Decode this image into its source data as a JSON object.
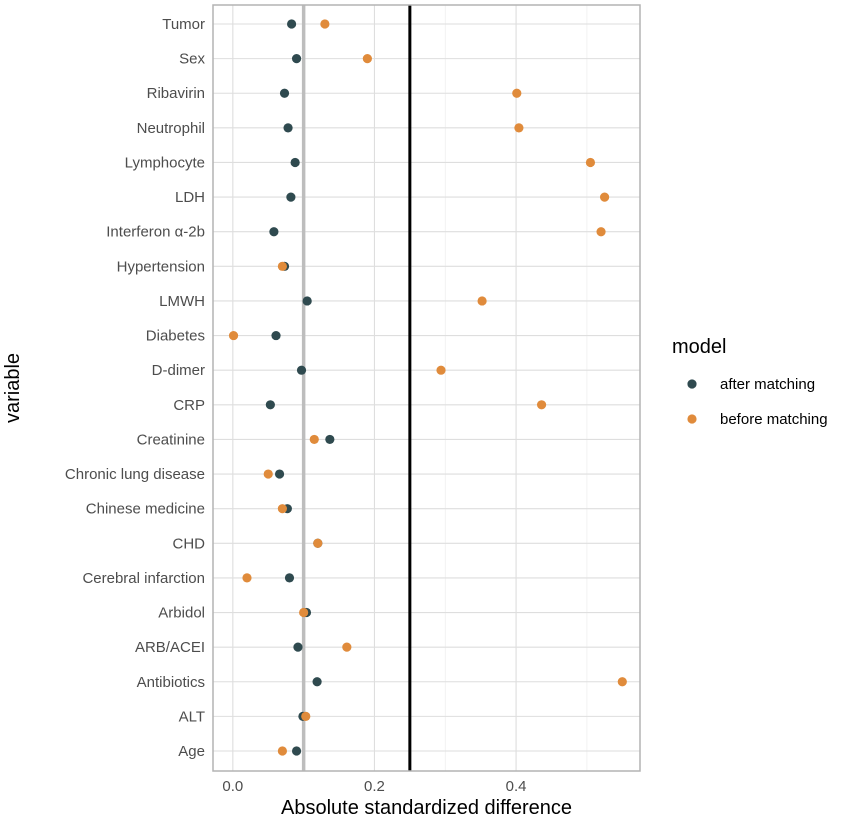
{
  "chart_data": {
    "type": "scatter",
    "title": "",
    "xlabel": "Absolute standardized difference",
    "ylabel": "variable",
    "xlim": [
      -0.028,
      0.575
    ],
    "x_ticks": [
      0.0,
      0.2,
      0.4
    ],
    "x_tick_labels": [
      "0.0",
      "0.2",
      "0.4"
    ],
    "reference_lines": [
      {
        "x": 0.1,
        "color": "#bdbdbd"
      },
      {
        "x": 0.25,
        "color": "#000000"
      }
    ],
    "categories": [
      "Tumor",
      "Sex",
      "Ribavirin",
      "Neutrophil",
      "Lymphocyte",
      "LDH",
      "Interferon α-2b",
      "Hypertension",
      "LMWH",
      "Diabetes",
      "D-dimer",
      "CRP",
      "Creatinine",
      "Chronic lung disease",
      "Chinese medicine",
      "CHD",
      "Cerebral infarction",
      "Arbidol",
      "ARB/ACEI",
      "Antibiotics",
      "ALT",
      "Age"
    ],
    "grid": true,
    "legend": {
      "title": "model",
      "placement": "right"
    },
    "series": [
      {
        "name": "after matching",
        "color": "#2f4a4f",
        "values": [
          0.083,
          0.09,
          0.073,
          0.078,
          0.088,
          0.082,
          0.058,
          0.073,
          0.105,
          0.061,
          0.097,
          0.053,
          0.137,
          0.066,
          0.077,
          0.12,
          0.08,
          0.104,
          0.092,
          0.119,
          0.099,
          0.09
        ]
      },
      {
        "name": "before matching",
        "color": "#e08b3b",
        "values": [
          0.13,
          0.19,
          0.401,
          0.404,
          0.505,
          0.525,
          0.52,
          0.07,
          0.352,
          0.001,
          0.294,
          0.436,
          0.115,
          0.05,
          0.07,
          0.12,
          0.02,
          0.1,
          0.161,
          0.55,
          0.103,
          0.07
        ]
      }
    ]
  }
}
